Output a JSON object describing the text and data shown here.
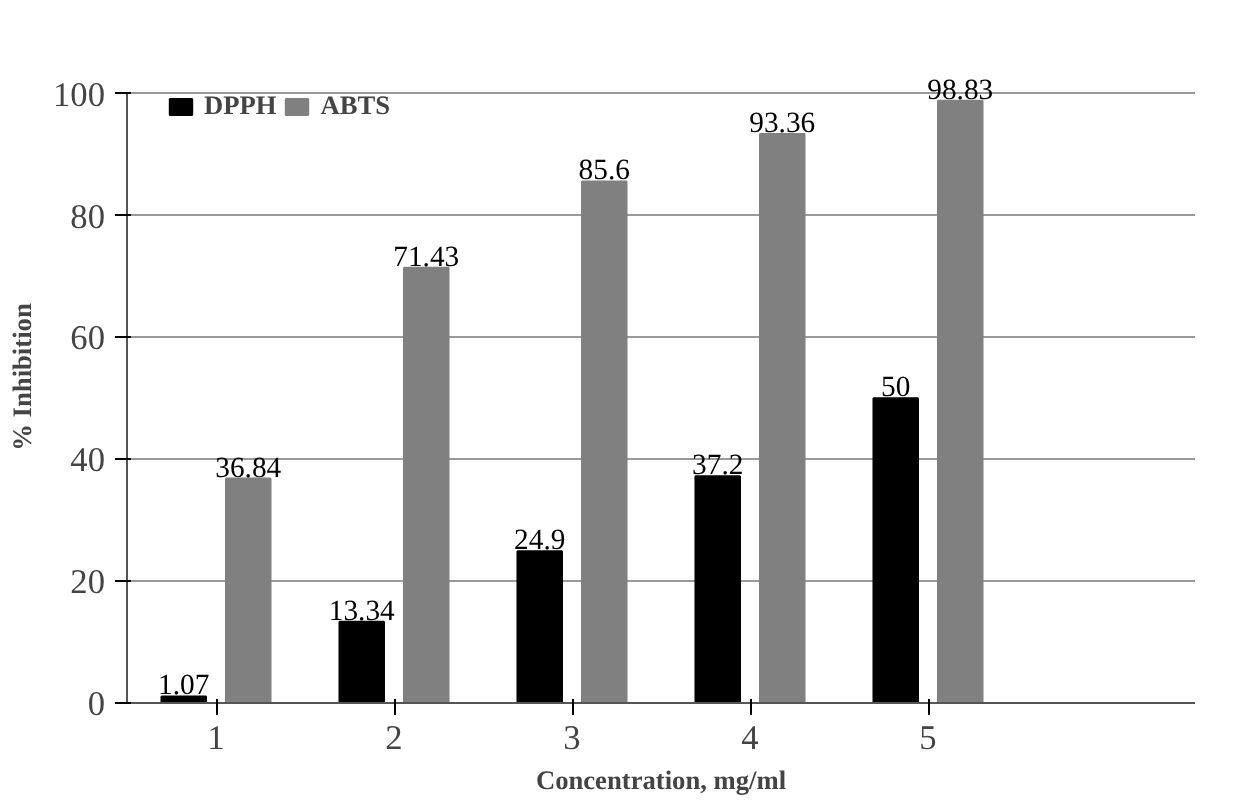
{
  "chart_data": {
    "type": "bar",
    "xlabel": "Concentration, mg/ml",
    "ylabel": "% Inhibition",
    "categories": [
      "1",
      "2",
      "3",
      "4",
      "5",
      null
    ],
    "series": [
      {
        "name": "DPPH",
        "color": "#000000",
        "values": [
          1.07,
          13.34,
          24.9,
          37.2,
          50,
          null
        ]
      },
      {
        "name": "ABTS",
        "color": "#808080",
        "values": [
          36.84,
          71.43,
          85.6,
          93.36,
          98.83,
          null
        ]
      }
    ],
    "ylim": [
      0,
      100
    ],
    "yticks": [
      0,
      20,
      40,
      60,
      80,
      100
    ],
    "grid": "y",
    "legend": "top left",
    "data_labels": true
  }
}
